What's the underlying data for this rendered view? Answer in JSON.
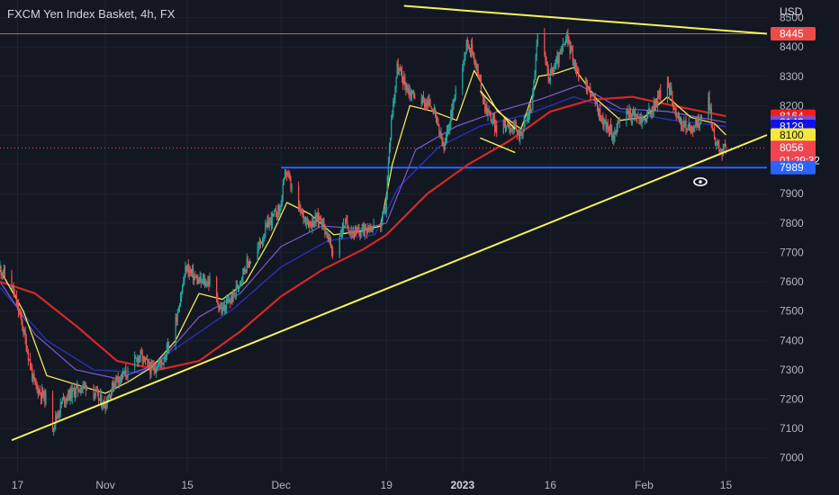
{
  "header": {
    "title": "FXCM Yen Index Basket, 4h, FX",
    "currency": "USD"
  },
  "colors": {
    "background": "#131722",
    "grid": "#1e2230",
    "text": "#b2b5be",
    "up": "#26a69a",
    "down": "#ef5350",
    "ema_fast": "#f3e55b",
    "ema_mid": "#7b5ccc",
    "ema_slow": "#2a2fb8",
    "ema_long": "#d62727",
    "trendline": "#f7f35a",
    "resistance": "#e05757",
    "support": "#2962ff"
  },
  "chart_data": {
    "type": "candlestick",
    "ylim": [
      6950,
      8560
    ],
    "x_range": [
      "2022-10-14",
      "2023-02-22"
    ],
    "y_ticks": [
      7000,
      7100,
      7200,
      7300,
      7400,
      7500,
      7600,
      7700,
      7800,
      7900,
      8000,
      8100,
      8200,
      8300,
      8400,
      8500
    ],
    "x_ticks": [
      {
        "date": "2022-10-17",
        "label": "17"
      },
      {
        "date": "2022-11-01",
        "label": "Nov"
      },
      {
        "date": "2022-11-15",
        "label": "15"
      },
      {
        "date": "2022-12-01",
        "label": "Dec"
      },
      {
        "date": "2022-12-19",
        "label": "19"
      },
      {
        "date": "2023-01-01",
        "label": "2023"
      },
      {
        "date": "2023-01-16",
        "label": "16"
      },
      {
        "date": "2023-02-01",
        "label": "Feb"
      },
      {
        "date": "2023-02-15",
        "label": "15"
      }
    ],
    "price_series": [
      [
        "2022-10-14",
        7650
      ],
      [
        "2022-10-16",
        7600
      ],
      [
        "2022-10-18",
        7450
      ],
      [
        "2022-10-20",
        7250
      ],
      [
        "2022-10-22",
        7200
      ],
      [
        "2022-10-23",
        7100
      ],
      [
        "2022-10-25",
        7200
      ],
      [
        "2022-10-27",
        7230
      ],
      [
        "2022-10-29",
        7250
      ],
      [
        "2022-11-01",
        7180
      ],
      [
        "2022-11-03",
        7270
      ],
      [
        "2022-11-05",
        7290
      ],
      [
        "2022-11-07",
        7350
      ],
      [
        "2022-11-09",
        7300
      ],
      [
        "2022-11-11",
        7330
      ],
      [
        "2022-11-13",
        7450
      ],
      [
        "2022-11-15",
        7650
      ],
      [
        "2022-11-17",
        7600
      ],
      [
        "2022-11-19",
        7600
      ],
      [
        "2022-11-21",
        7500
      ],
      [
        "2022-11-23",
        7550
      ],
      [
        "2022-11-25",
        7650
      ],
      [
        "2022-11-27",
        7700
      ],
      [
        "2022-11-29",
        7800
      ],
      [
        "2022-12-01",
        7850
      ],
      [
        "2022-12-02",
        7980
      ],
      [
        "2022-12-04",
        7850
      ],
      [
        "2022-12-06",
        7800
      ],
      [
        "2022-12-08",
        7820
      ],
      [
        "2022-12-10",
        7700
      ],
      [
        "2022-12-12",
        7800
      ],
      [
        "2022-12-14",
        7760
      ],
      [
        "2022-12-16",
        7790
      ],
      [
        "2022-12-18",
        7780
      ],
      [
        "2022-12-19",
        7850
      ],
      [
        "2022-12-20",
        8150
      ],
      [
        "2022-12-21",
        8330
      ],
      [
        "2022-12-23",
        8250
      ],
      [
        "2022-12-25",
        8220
      ],
      [
        "2022-12-27",
        8200
      ],
      [
        "2022-12-29",
        8050
      ],
      [
        "2022-12-31",
        8250
      ],
      [
        "2023-01-02",
        8420
      ],
      [
        "2023-01-03",
        8380
      ],
      [
        "2023-01-05",
        8200
      ],
      [
        "2023-01-07",
        8120
      ],
      [
        "2023-01-09",
        8140
      ],
      [
        "2023-01-11",
        8100
      ],
      [
        "2023-01-13",
        8200
      ],
      [
        "2023-01-14",
        8440
      ],
      [
        "2023-01-16",
        8300
      ],
      [
        "2023-01-18",
        8380
      ],
      [
        "2023-01-19",
        8430
      ],
      [
        "2023-01-21",
        8300
      ],
      [
        "2023-01-23",
        8250
      ],
      [
        "2023-01-25",
        8150
      ],
      [
        "2023-01-27",
        8100
      ],
      [
        "2023-01-29",
        8180
      ],
      [
        "2023-02-01",
        8150
      ],
      [
        "2023-02-03",
        8200
      ],
      [
        "2023-02-05",
        8290
      ],
      [
        "2023-02-07",
        8150
      ],
      [
        "2023-02-09",
        8120
      ],
      [
        "2023-02-11",
        8150
      ],
      [
        "2023-02-12",
        8260
      ],
      [
        "2023-02-13",
        8100
      ],
      [
        "2023-02-14",
        8050
      ],
      [
        "2023-02-15",
        8056
      ]
    ],
    "moving_averages": [
      {
        "key": "ema_fast",
        "points": [
          [
            "2022-10-14",
            7640
          ],
          [
            "2022-10-18",
            7500
          ],
          [
            "2022-10-22",
            7280
          ],
          [
            "2022-10-27",
            7250
          ],
          [
            "2022-11-01",
            7220
          ],
          [
            "2022-11-05",
            7260
          ],
          [
            "2022-11-09",
            7310
          ],
          [
            "2022-11-13",
            7400
          ],
          [
            "2022-11-17",
            7560
          ],
          [
            "2022-11-21",
            7540
          ],
          [
            "2022-11-25",
            7600
          ],
          [
            "2022-11-29",
            7740
          ],
          [
            "2022-12-02",
            7870
          ],
          [
            "2022-12-06",
            7830
          ],
          [
            "2022-12-10",
            7760
          ],
          [
            "2022-12-14",
            7770
          ],
          [
            "2022-12-18",
            7790
          ],
          [
            "2022-12-20",
            8000
          ],
          [
            "2022-12-23",
            8200
          ],
          [
            "2022-12-27",
            8180
          ],
          [
            "2022-12-31",
            8150
          ],
          [
            "2023-01-03",
            8320
          ],
          [
            "2023-01-07",
            8180
          ],
          [
            "2023-01-11",
            8120
          ],
          [
            "2023-01-14",
            8300
          ],
          [
            "2023-01-17",
            8310
          ],
          [
            "2023-01-20",
            8330
          ],
          [
            "2023-01-24",
            8220
          ],
          [
            "2023-01-28",
            8150
          ],
          [
            "2023-02-01",
            8160
          ],
          [
            "2023-02-05",
            8230
          ],
          [
            "2023-02-09",
            8160
          ],
          [
            "2023-02-13",
            8140
          ],
          [
            "2023-02-15",
            8100
          ]
        ]
      },
      {
        "key": "ema_mid",
        "points": [
          [
            "2022-10-14",
            7600
          ],
          [
            "2022-10-20",
            7420
          ],
          [
            "2022-10-27",
            7300
          ],
          [
            "2022-11-03",
            7270
          ],
          [
            "2022-11-10",
            7320
          ],
          [
            "2022-11-17",
            7480
          ],
          [
            "2022-11-24",
            7560
          ],
          [
            "2022-12-01",
            7720
          ],
          [
            "2022-12-08",
            7790
          ],
          [
            "2022-12-15",
            7780
          ],
          [
            "2022-12-19",
            7800
          ],
          [
            "2022-12-24",
            8050
          ],
          [
            "2022-12-31",
            8130
          ],
          [
            "2023-01-07",
            8180
          ],
          [
            "2023-01-14",
            8220
          ],
          [
            "2023-01-21",
            8270
          ],
          [
            "2023-01-28",
            8190
          ],
          [
            "2023-02-05",
            8180
          ],
          [
            "2023-02-15",
            8143
          ]
        ]
      },
      {
        "key": "ema_slow",
        "points": [
          [
            "2022-10-14",
            7580
          ],
          [
            "2022-10-22",
            7400
          ],
          [
            "2022-10-30",
            7300
          ],
          [
            "2022-11-07",
            7290
          ],
          [
            "2022-11-15",
            7400
          ],
          [
            "2022-11-23",
            7510
          ],
          [
            "2022-12-01",
            7650
          ],
          [
            "2022-12-09",
            7740
          ],
          [
            "2022-12-17",
            7760
          ],
          [
            "2022-12-21",
            7920
          ],
          [
            "2022-12-28",
            8060
          ],
          [
            "2023-01-04",
            8130
          ],
          [
            "2023-01-12",
            8170
          ],
          [
            "2023-01-20",
            8230
          ],
          [
            "2023-01-28",
            8180
          ],
          [
            "2023-02-06",
            8150
          ],
          [
            "2023-02-15",
            8129
          ]
        ]
      },
      {
        "key": "ema_long",
        "points": [
          [
            "2022-10-14",
            7600
          ],
          [
            "2022-10-20",
            7560
          ],
          [
            "2022-10-27",
            7450
          ],
          [
            "2022-11-03",
            7330
          ],
          [
            "2022-11-10",
            7300
          ],
          [
            "2022-11-17",
            7330
          ],
          [
            "2022-11-24",
            7430
          ],
          [
            "2022-12-01",
            7550
          ],
          [
            "2022-12-08",
            7640
          ],
          [
            "2022-12-15",
            7710
          ],
          [
            "2022-12-19",
            7760
          ],
          [
            "2022-12-26",
            7900
          ],
          [
            "2023-01-02",
            8000
          ],
          [
            "2023-01-09",
            8080
          ],
          [
            "2023-01-16",
            8180
          ],
          [
            "2023-01-23",
            8220
          ],
          [
            "2023-01-30",
            8230
          ],
          [
            "2023-02-06",
            8200
          ],
          [
            "2023-02-15",
            8164
          ]
        ]
      }
    ],
    "drawings": {
      "ascending_trendline": [
        [
          "2022-10-16",
          7060
        ],
        [
          "2023-02-22",
          8100
        ]
      ],
      "descending_trendline": [
        [
          "2022-12-22",
          8540
        ],
        [
          "2023-02-22",
          8445
        ]
      ],
      "resistance_level": 8445,
      "support_level": 7989,
      "support_from": "2022-12-01",
      "wedge_upper": [
        [
          "2023-01-04",
          8250
        ],
        [
          "2023-01-10",
          8120
        ]
      ],
      "wedge_lower": [
        [
          "2023-01-04",
          8090
        ],
        [
          "2023-01-10",
          8040
        ]
      ]
    },
    "price_labels": [
      {
        "value": 8445,
        "text": "8445",
        "bg": "#f04949",
        "fg": "#ffffff"
      },
      {
        "value": 8164,
        "text": "8164",
        "bg": "#f21c1c",
        "fg": "#ffffff"
      },
      {
        "value": 8143,
        "text": "8143",
        "bg": "#7d4dc8",
        "fg": "#ffffff"
      },
      {
        "value": 8129,
        "text": "8129",
        "bg": "#1111e8",
        "fg": "#ffffff"
      },
      {
        "value": 8100,
        "text": "8100",
        "bg": "#f5e83a",
        "fg": "#131722"
      },
      {
        "value": 8056,
        "text": "8056",
        "sub": "01:29:32",
        "bg": "#f0454f",
        "fg": "#ffffff"
      },
      {
        "value": 7989,
        "text": "7989",
        "bg": "#2962ff",
        "fg": "#ffffff"
      }
    ]
  }
}
